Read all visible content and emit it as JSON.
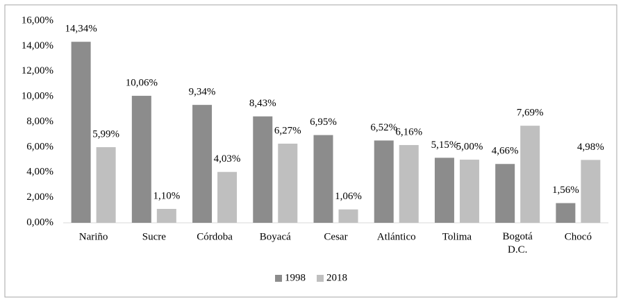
{
  "chart_data": {
    "type": "bar",
    "categories": [
      "Nariño",
      "Sucre",
      "Córdoba",
      "Boyacá",
      "Cesar",
      "Atlántico",
      "Tolima",
      "Bogotá D.C.",
      "Chocó"
    ],
    "series": [
      {
        "name": "1998",
        "color": "#8c8c8c",
        "values": [
          14.34,
          10.06,
          9.34,
          8.43,
          6.95,
          6.52,
          5.15,
          4.66,
          1.56
        ],
        "value_labels": [
          "14,34%",
          "10,06%",
          "9,34%",
          "8,43%",
          "6,95%",
          "6,52%",
          "5,15%",
          "4,66%",
          "1,56%"
        ]
      },
      {
        "name": "2018",
        "color": "#bfbfbf",
        "values": [
          5.99,
          1.1,
          4.03,
          6.27,
          1.06,
          6.16,
          5.0,
          7.69,
          4.98
        ],
        "value_labels": [
          "5,99%",
          "1,10%",
          "4,03%",
          "6,27%",
          "1,06%",
          "6,16%",
          "5,00%",
          "7,69%",
          "4,98%"
        ]
      }
    ],
    "ylim": [
      0,
      16
    ],
    "yticks": [
      {
        "value": 0,
        "label": "0,00%"
      },
      {
        "value": 2,
        "label": "2,00%"
      },
      {
        "value": 4,
        "label": "4,00%"
      },
      {
        "value": 6,
        "label": "6,00%"
      },
      {
        "value": 8,
        "label": "8,00%"
      },
      {
        "value": 10,
        "label": "10,00%"
      },
      {
        "value": 12,
        "label": "12,00%"
      },
      {
        "value": 14,
        "label": "14,00%"
      },
      {
        "value": 16,
        "label": "16,00%"
      }
    ],
    "grid": false,
    "legend": "bottom"
  }
}
